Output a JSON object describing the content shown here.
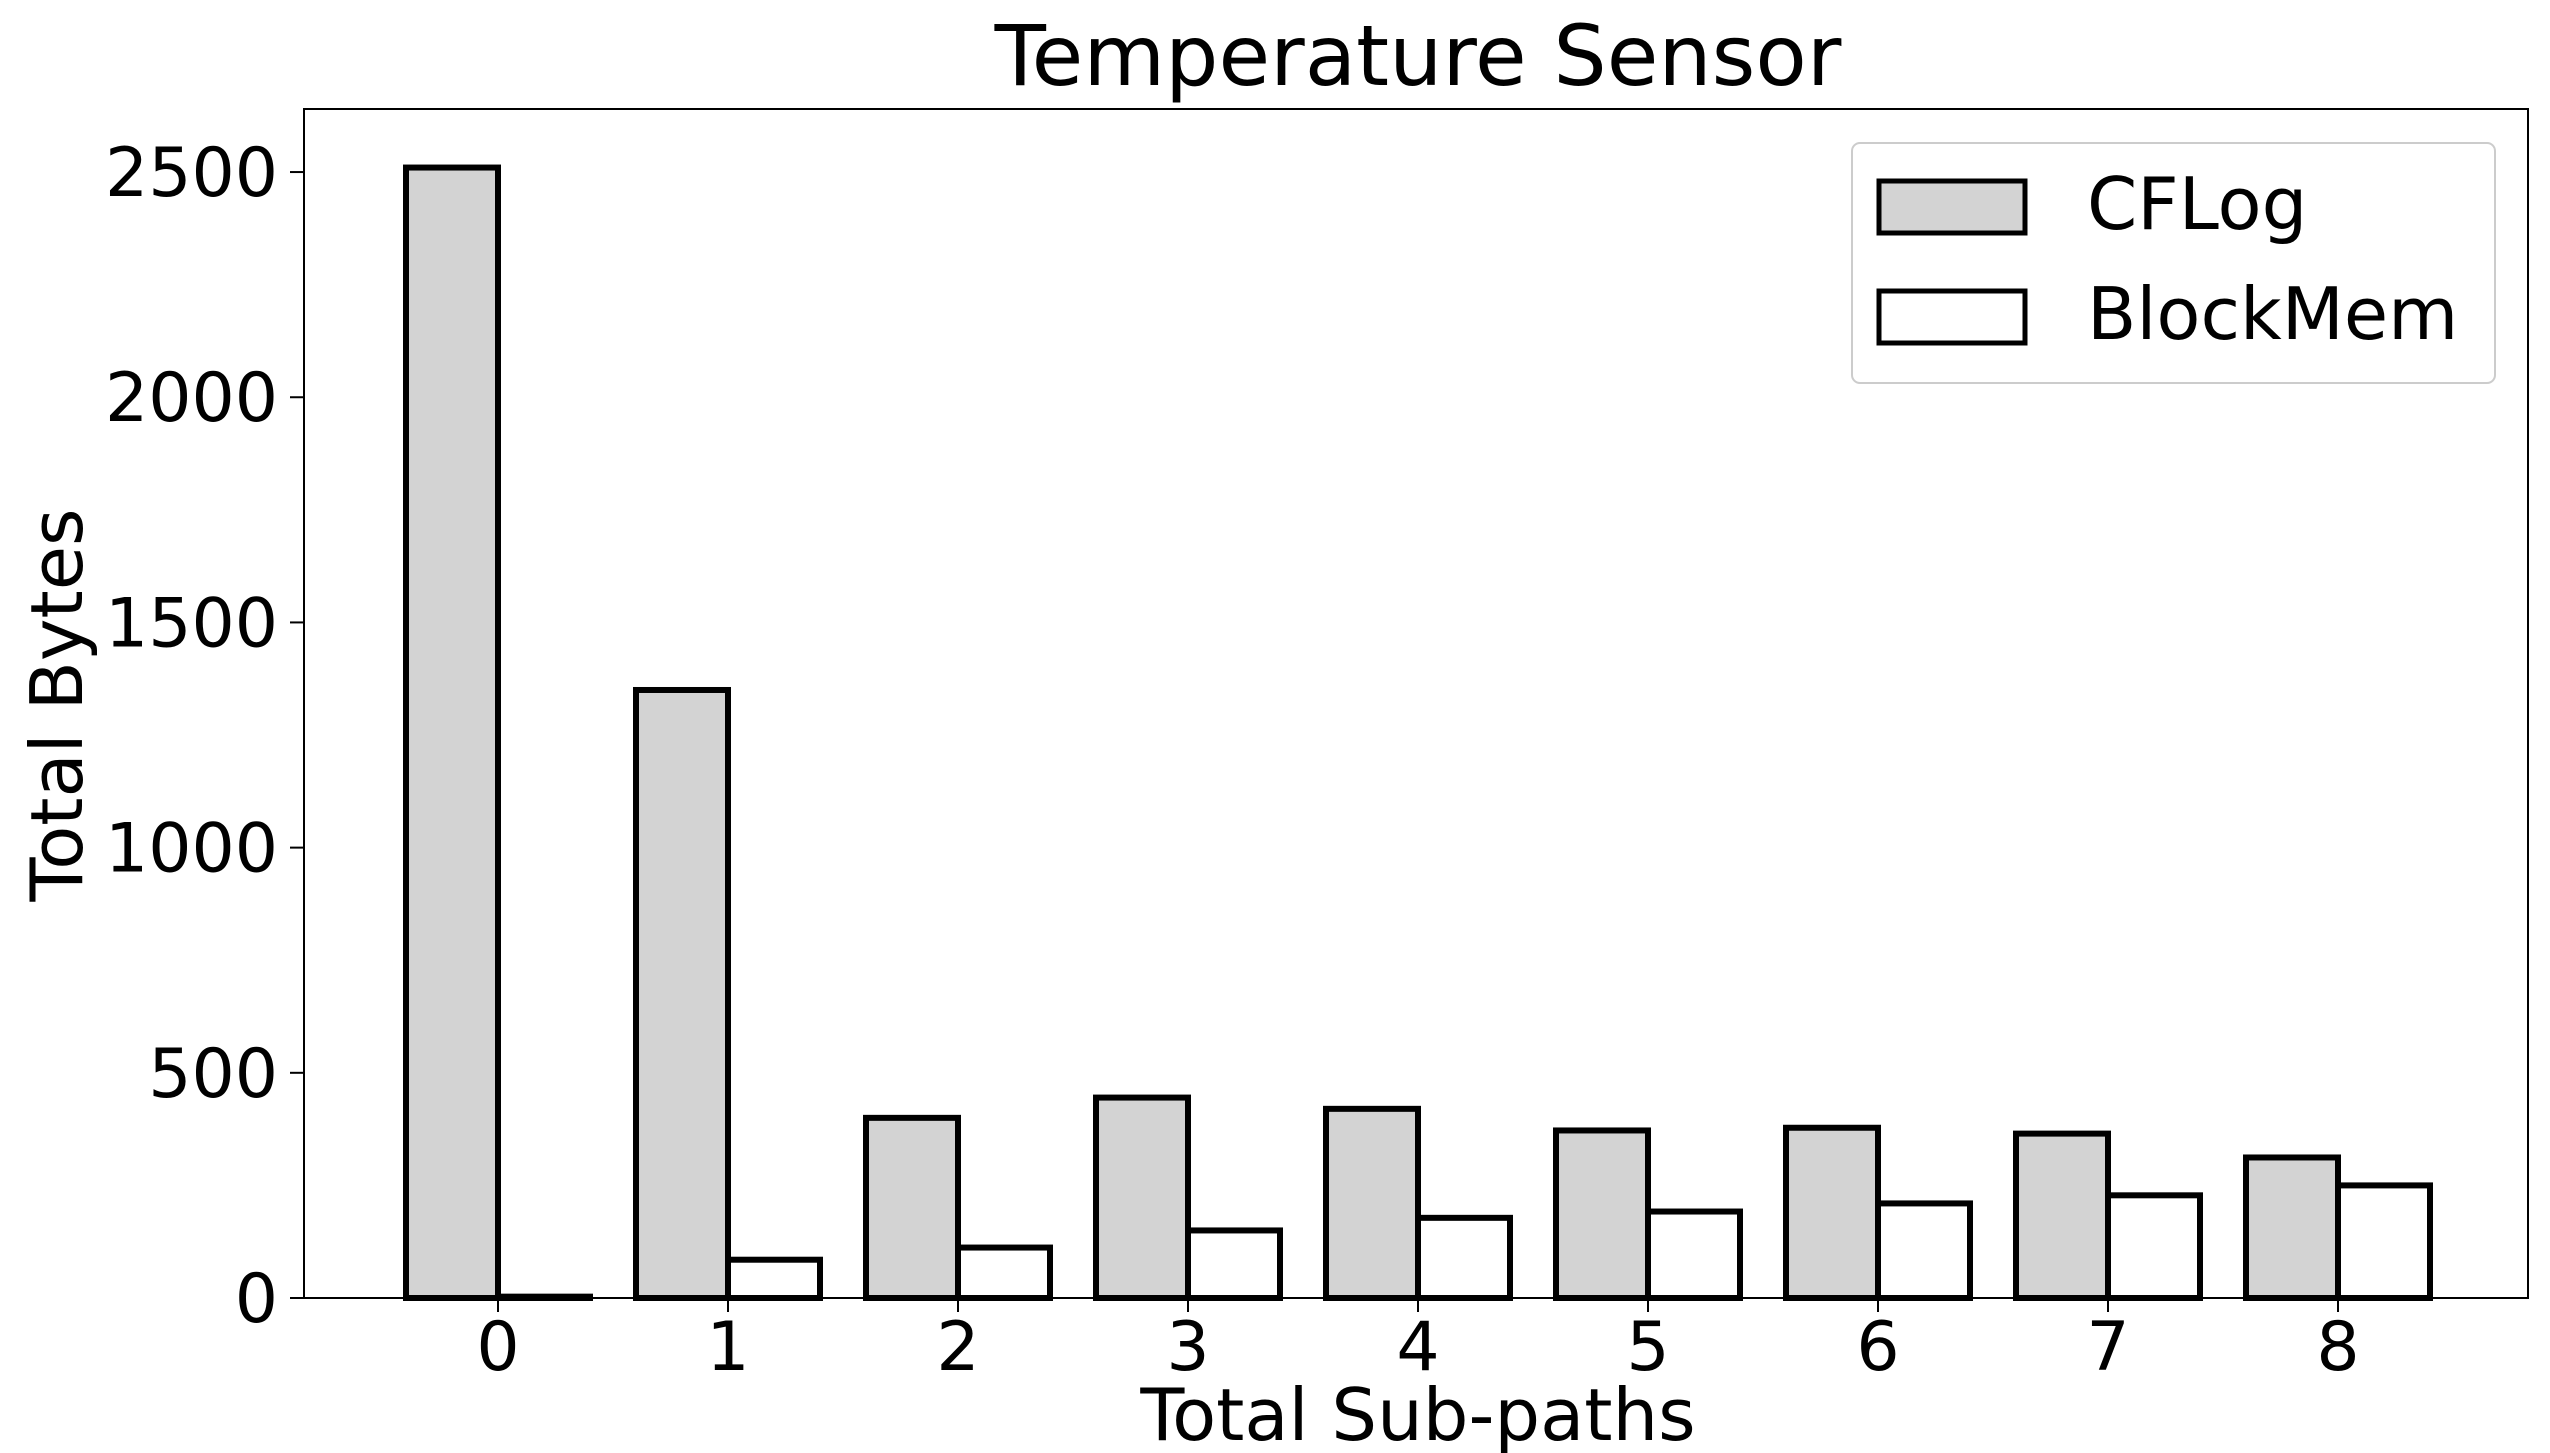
{
  "chart_data": {
    "type": "bar",
    "title": "Temperature Sensor",
    "xlabel": "Total Sub-paths",
    "ylabel": "Total Bytes",
    "categories": [
      "0",
      "1",
      "2",
      "3",
      "4",
      "5",
      "6",
      "7",
      "8"
    ],
    "series": [
      {
        "name": "CFLog",
        "color": "#d3d3d3",
        "values": [
          2510,
          1350,
          400,
          445,
          420,
          372,
          378,
          365,
          312
        ]
      },
      {
        "name": "BlockMem",
        "color": "#ffffff",
        "values": [
          3,
          85,
          112,
          150,
          178,
          192,
          210,
          228,
          250
        ]
      }
    ],
    "ylim": [
      0,
      2640
    ],
    "yticks": [
      "0",
      "500",
      "1000",
      "1500",
      "2000",
      "2500"
    ],
    "grid": false,
    "legend_position": "top-right"
  }
}
